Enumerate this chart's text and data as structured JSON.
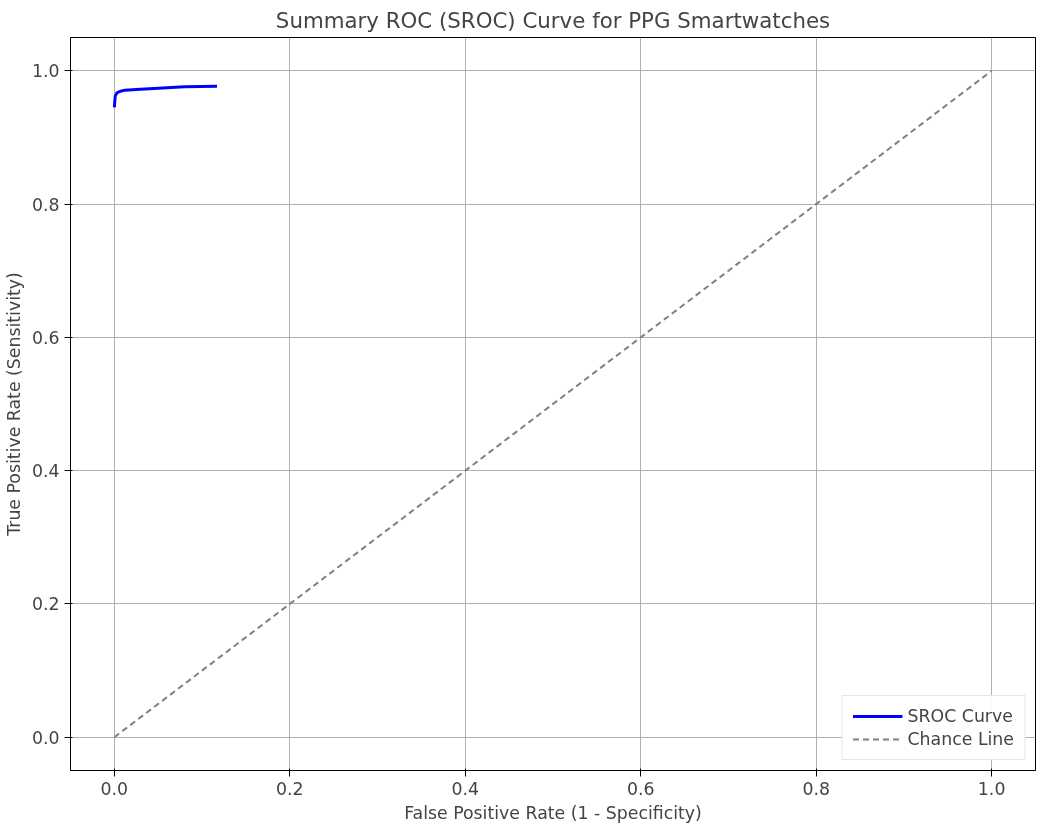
{
  "chart_data": {
    "type": "line",
    "title": "Summary ROC (SROC) Curve for PPG Smartwatches",
    "xlabel": "False Positive Rate (1 - Specificity)",
    "ylabel": "True Positive Rate (Sensitivity)",
    "series": [
      {
        "name": "SROC Curve",
        "color": "#0000ff",
        "line_style": "solid",
        "x": [
          0,
          0.0005,
          0.001,
          0.003,
          0.006,
          0.012,
          0.025,
          0.05,
          0.08,
          0.117
        ],
        "values": [
          0.945,
          0.955,
          0.962,
          0.967,
          0.969,
          0.971,
          0.972,
          0.974,
          0.976,
          0.977
        ]
      },
      {
        "name": "Chance Line",
        "color": "#808080",
        "line_style": "dashed",
        "x": [
          0,
          1
        ],
        "values": [
          0,
          1
        ]
      }
    ],
    "xlim": [
      -0.05,
      1.05
    ],
    "ylim": [
      -0.05,
      1.05
    ],
    "xticks": [
      {
        "value": 0,
        "label": "0.0"
      },
      0.2,
      0.4,
      0.6,
      0.8,
      {
        "value": 1,
        "label": "1.0"
      }
    ],
    "yticks": [
      {
        "value": 0,
        "label": "0.0"
      },
      0.2,
      0.4,
      0.6,
      0.8,
      {
        "value": 1,
        "label": "1.0"
      }
    ],
    "grid": true,
    "legend": "bottom right",
    "marker": "none"
  }
}
